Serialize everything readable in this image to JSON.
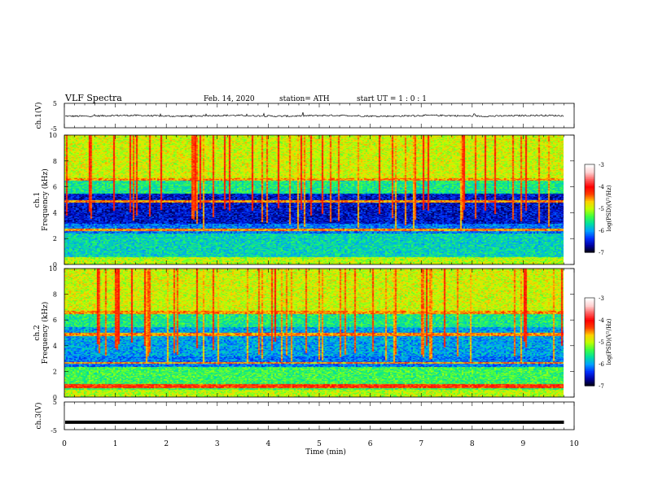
{
  "header": {
    "title": "VLF  Spectra",
    "date": "Feb. 14, 2020",
    "station": "station= ATH",
    "start_ut": "start  UT  =    1  : 0   : 1"
  },
  "chart_data": [
    {
      "type": "line",
      "panel": "ch1-waveform",
      "ylabel": "ch.1(V)",
      "yticks": [
        "5",
        "-5"
      ],
      "ylim": [
        -5,
        5
      ],
      "xlim": [
        0,
        10
      ],
      "x_end": 9.8,
      "trace": "noisy near-zero waveform",
      "color": "#000000"
    },
    {
      "type": "heatmap",
      "panel": "ch1-spectrogram",
      "ylabel": "ch.1\nFrequency  (kHz)",
      "ylabel_lines": [
        "ch.1",
        "Frequency  (kHz)"
      ],
      "yticks": [
        "0",
        "2",
        "4",
        "6",
        "8",
        "10"
      ],
      "ylim": [
        0,
        10
      ],
      "xlim": [
        0,
        10
      ],
      "x_end": 9.8,
      "colorbar": {
        "label": "log(PSD)(V²/Hz)",
        "ticks": [
          "-3",
          "-4",
          "-5",
          "-6",
          "-7"
        ],
        "range": [
          -7,
          -3
        ],
        "colors": [
          "#000000",
          "#0000a0",
          "#0030ff",
          "#00a0ff",
          "#00e0a0",
          "#40ff40",
          "#c0ff00",
          "#ffd000",
          "#ff4000",
          "#ff0000",
          "#ff6060",
          "#ffd0d0",
          "#ffffff"
        ]
      }
    },
    {
      "type": "heatmap",
      "panel": "ch2-spectrogram",
      "ylabel": "ch.2\nFrequency  (kHz)",
      "ylabel_lines": [
        "ch.2",
        "Frequency  (kHz)"
      ],
      "yticks": [
        "0",
        "2",
        "4",
        "6",
        "8",
        "10"
      ],
      "ylim": [
        0,
        10
      ],
      "xlim": [
        0,
        10
      ],
      "x_end": 9.8,
      "colorbar": {
        "label": "log(PSD)(V²/Hz)",
        "ticks": [
          "-3",
          "-4",
          "-5",
          "-6",
          "-7"
        ],
        "range": [
          -7,
          -3
        ]
      }
    },
    {
      "type": "line",
      "panel": "ch3-waveform",
      "ylabel": "ch.3(V)",
      "yticks": [
        "5",
        "-5"
      ],
      "ylim": [
        -5,
        5
      ],
      "xlim": [
        0,
        10
      ],
      "x_end": 9.8,
      "value": -2.3,
      "color": "#000000"
    }
  ],
  "xaxis": {
    "label": "Time  (min)",
    "ticks": [
      "0",
      "1",
      "2",
      "3",
      "4",
      "5",
      "6",
      "7",
      "8",
      "9",
      "10"
    ],
    "range": [
      0,
      10
    ]
  }
}
